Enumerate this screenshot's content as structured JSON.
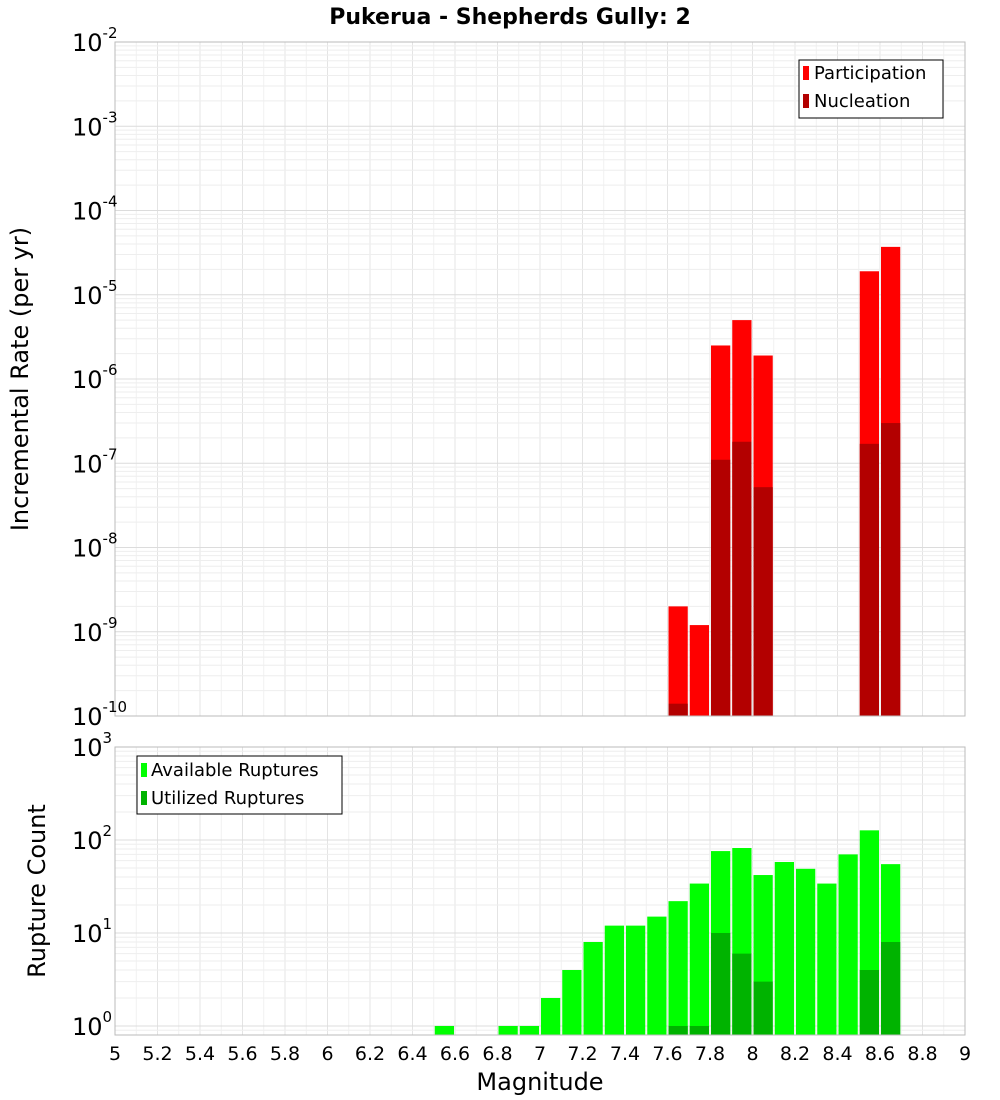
{
  "title": "Pukerua - Shepherds Gully: 2",
  "chart_data": [
    {
      "type": "bar",
      "panel": "top",
      "title": "Pukerua - Shepherds Gully: 2",
      "xlabel": "",
      "ylabel": "Incremental Rate (per yr)",
      "yscale": "log",
      "xlim": [
        5,
        9
      ],
      "ylim": [
        1e-10,
        0.01
      ],
      "y_ticks": [
        {
          "base": "10",
          "exp": "-10",
          "value": 1e-10
        },
        {
          "base": "10",
          "exp": "-9",
          "value": 1e-09
        },
        {
          "base": "10",
          "exp": "-8",
          "value": 1e-08
        },
        {
          "base": "10",
          "exp": "-7",
          "value": 1e-07
        },
        {
          "base": "10",
          "exp": "-6",
          "value": 1e-06
        },
        {
          "base": "10",
          "exp": "-5",
          "value": 1e-05
        },
        {
          "base": "10",
          "exp": "-4",
          "value": 0.0001
        },
        {
          "base": "10",
          "exp": "-3",
          "value": 0.001
        },
        {
          "base": "10",
          "exp": "-2",
          "value": 0.01
        }
      ],
      "grid": true,
      "legend_position": "top-right",
      "series": [
        {
          "name": "Participation",
          "color": "#ff0000",
          "points": [
            {
              "x": 7.65,
              "y": 2e-09
            },
            {
              "x": 7.75,
              "y": 1.2e-09
            },
            {
              "x": 7.85,
              "y": 2.5e-06
            },
            {
              "x": 7.95,
              "y": 5e-06
            },
            {
              "x": 8.05,
              "y": 1.9e-06
            },
            {
              "x": 8.55,
              "y": 1.9e-05
            },
            {
              "x": 8.65,
              "y": 3.7e-05
            }
          ]
        },
        {
          "name": "Nucleation",
          "color": "#b30000",
          "points": [
            {
              "x": 7.65,
              "y": 1.4e-10
            },
            {
              "x": 7.85,
              "y": 1.1e-07
            },
            {
              "x": 7.95,
              "y": 1.8e-07
            },
            {
              "x": 8.05,
              "y": 5.2e-08
            },
            {
              "x": 8.55,
              "y": 1.7e-07
            },
            {
              "x": 8.65,
              "y": 3e-07
            }
          ]
        }
      ]
    },
    {
      "type": "bar",
      "panel": "bottom",
      "xlabel": "Magnitude",
      "ylabel": "Rupture Count",
      "yscale": "log",
      "xlim": [
        5,
        9
      ],
      "ylim": [
        0.8,
        1000
      ],
      "x_ticks": [
        "5",
        "5.2",
        "5.4",
        "5.6",
        "5.8",
        "6",
        "6.2",
        "6.4",
        "6.6",
        "6.8",
        "7",
        "7.2",
        "7.4",
        "7.6",
        "7.8",
        "8",
        "8.2",
        "8.4",
        "8.6",
        "8.8",
        "9"
      ],
      "y_ticks": [
        {
          "base": "10",
          "exp": "0",
          "value": 1
        },
        {
          "base": "10",
          "exp": "1",
          "value": 10
        },
        {
          "base": "10",
          "exp": "2",
          "value": 100
        },
        {
          "base": "10",
          "exp": "3",
          "value": 1000
        }
      ],
      "grid": true,
      "legend_position": "top-left",
      "series": [
        {
          "name": "Available Ruptures",
          "color": "#00ff00",
          "points": [
            {
              "x": 6.55,
              "y": 1
            },
            {
              "x": 6.85,
              "y": 1
            },
            {
              "x": 6.95,
              "y": 1
            },
            {
              "x": 7.05,
              "y": 2
            },
            {
              "x": 7.15,
              "y": 4
            },
            {
              "x": 7.25,
              "y": 8
            },
            {
              "x": 7.35,
              "y": 12
            },
            {
              "x": 7.45,
              "y": 12
            },
            {
              "x": 7.55,
              "y": 15
            },
            {
              "x": 7.65,
              "y": 22
            },
            {
              "x": 7.75,
              "y": 34
            },
            {
              "x": 7.85,
              "y": 76
            },
            {
              "x": 7.95,
              "y": 82
            },
            {
              "x": 8.05,
              "y": 42
            },
            {
              "x": 8.15,
              "y": 58
            },
            {
              "x": 8.25,
              "y": 49
            },
            {
              "x": 8.35,
              "y": 34
            },
            {
              "x": 8.45,
              "y": 70
            },
            {
              "x": 8.55,
              "y": 127
            },
            {
              "x": 8.65,
              "y": 55
            }
          ]
        },
        {
          "name": "Utilized Ruptures",
          "color": "#00b300",
          "points": [
            {
              "x": 7.65,
              "y": 1
            },
            {
              "x": 7.75,
              "y": 1
            },
            {
              "x": 7.85,
              "y": 10
            },
            {
              "x": 7.95,
              "y": 6
            },
            {
              "x": 8.05,
              "y": 3
            },
            {
              "x": 8.55,
              "y": 4
            },
            {
              "x": 8.65,
              "y": 8
            }
          ]
        }
      ]
    }
  ]
}
